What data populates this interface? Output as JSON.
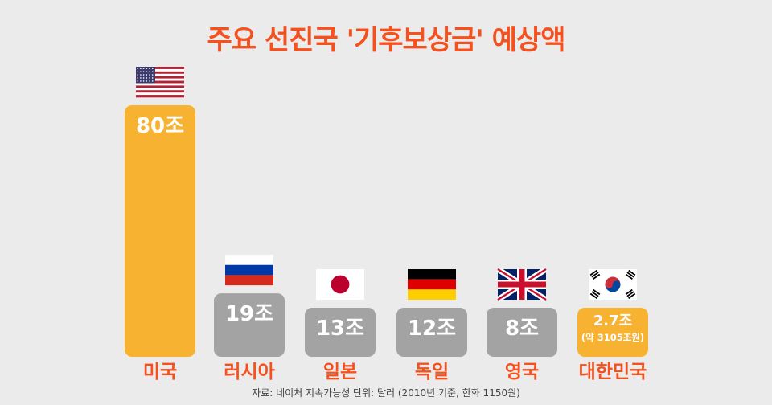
{
  "title": "주요 선진국 '기후보상금' 예상액",
  "source_text": "자료: 네이처 지속가능성   단위: 달러 (2010년 기준, 한화 1150원)",
  "colors": {
    "background": "#ebebeb",
    "title": "#f4511e",
    "highlight_bar": "#f7b232",
    "default_bar": "#a3a3a3",
    "category_label": "#f4511e",
    "value_label": "#ffffff"
  },
  "chart_data": {
    "type": "bar",
    "title": "주요 선진국 '기후보상금' 예상액",
    "xlabel": "",
    "ylabel": "",
    "unit": "조 달러",
    "categories": [
      "미국",
      "러시아",
      "일본",
      "독일",
      "영국",
      "대한민국"
    ],
    "values": [
      80,
      19,
      13,
      12,
      8,
      2.7
    ],
    "value_labels": [
      "80조",
      "19조",
      "13조",
      "12조",
      "8조",
      "2.7조"
    ],
    "value_sublabels": [
      "",
      "",
      "",
      "",
      "",
      "(약 3105조원)"
    ],
    "flags": [
      "us-flag-icon",
      "russia-flag-icon",
      "japan-flag-icon",
      "germany-flag-icon",
      "uk-flag-icon",
      "korea-flag-icon"
    ],
    "highlighted": [
      true,
      false,
      false,
      false,
      false,
      true
    ],
    "grid": false,
    "legend": "none",
    "ylim": [
      0,
      80
    ]
  }
}
